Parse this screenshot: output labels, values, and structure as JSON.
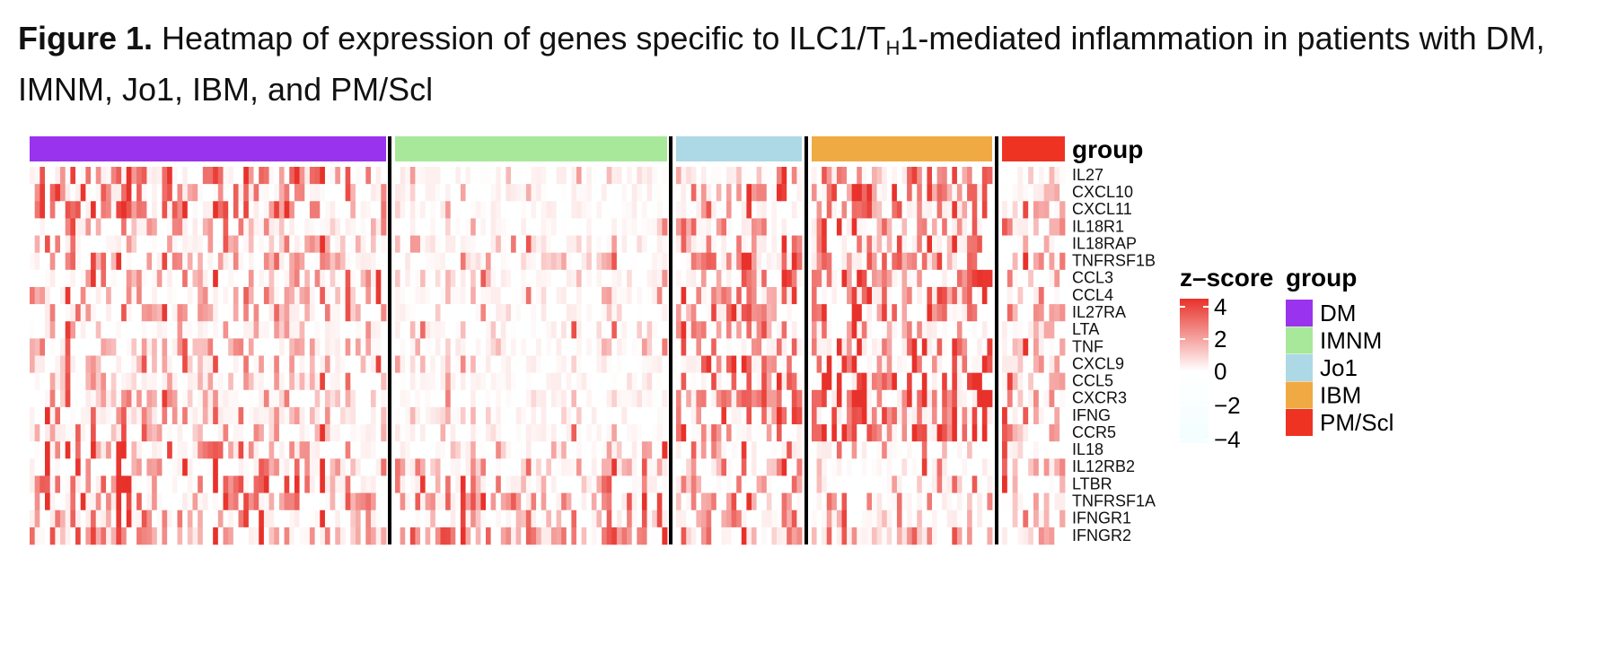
{
  "caption": {
    "bold": "Figure 1.",
    "text_a": " Heatmap of expression of genes specific to ILC1/T",
    "subscript": "H",
    "text_b": "1-mediated inflammation in patients with DM, IMNM, Jo1, IBM, and PM/Scl"
  },
  "chart_data": {
    "type": "heatmap",
    "title": "Heatmap of expression of genes specific to ILC1/TH1-mediated inflammation in patients with DM, IMNM, Jo1, IBM, and PM/Scl",
    "annotation_title": "group",
    "groups": [
      {
        "name": "DM",
        "color": "#9933EE",
        "n_samples": 70
      },
      {
        "name": "IMNM",
        "color": "#A8E89A",
        "n_samples": 54
      },
      {
        "name": "Jo1",
        "color": "#ADD8E6",
        "n_samples": 25
      },
      {
        "name": "IBM",
        "color": "#F0AA44",
        "n_samples": 36
      },
      {
        "name": "PM/Scl",
        "color": "#EE3322",
        "n_samples": 12
      }
    ],
    "genes": [
      "IL27",
      "CXCL10",
      "CXCL11",
      "IL18R1",
      "IL18RAP",
      "TNFRSF1B",
      "CCL3",
      "CCL4",
      "IL27RA",
      "LTA",
      "TNF",
      "CXCL9",
      "CCL5",
      "CXCR3",
      "IFNG",
      "CCR5",
      "IL18",
      "IL12RB2",
      "LTBR",
      "TNFRSF1A",
      "IFNGR1",
      "IFNGR2"
    ],
    "colorbar": {
      "title": "z–score",
      "range": [
        -4,
        4
      ],
      "ticks": [
        4,
        2,
        0,
        -2,
        -4
      ],
      "tick_labels": [
        "4",
        "2",
        "0",
        "−2",
        "−4"
      ],
      "low_color": "#F4FEFF",
      "mid_color": "#FFFFFF",
      "high_color": "#E8312A"
    },
    "group_mean_zscore": [
      [
        0.9,
        -0.2,
        0.3,
        0.6,
        0.4
      ],
      [
        0.8,
        -0.4,
        0.7,
        0.8,
        0.3
      ],
      [
        0.9,
        -0.4,
        0.6,
        0.6,
        0.3
      ],
      [
        0.5,
        -0.2,
        0.8,
        0.7,
        0.4
      ],
      [
        0.4,
        -0.1,
        0.6,
        0.7,
        0.3
      ],
      [
        0.6,
        0.2,
        0.8,
        0.8,
        0.6
      ],
      [
        0.5,
        -0.1,
        0.8,
        0.9,
        0.5
      ],
      [
        0.5,
        -0.1,
        0.8,
        0.9,
        0.5
      ],
      [
        0.5,
        0.0,
        0.7,
        0.9,
        0.6
      ],
      [
        0.4,
        0.0,
        0.7,
        0.8,
        0.5
      ],
      [
        0.4,
        -0.1,
        0.8,
        0.9,
        0.5
      ],
      [
        0.3,
        -0.3,
        1.0,
        1.1,
        0.5
      ],
      [
        0.3,
        -0.3,
        0.9,
        1.2,
        0.5
      ],
      [
        0.3,
        -0.3,
        0.9,
        1.2,
        0.5
      ],
      [
        0.3,
        -0.3,
        0.8,
        1.1,
        0.5
      ],
      [
        0.3,
        -0.3,
        0.9,
        1.2,
        0.5
      ],
      [
        0.7,
        0.3,
        0.5,
        0.3,
        0.4
      ],
      [
        0.7,
        0.3,
        0.4,
        0.3,
        0.4
      ],
      [
        0.8,
        0.6,
        0.5,
        0.2,
        0.5
      ],
      [
        0.8,
        0.8,
        0.4,
        0.2,
        0.4
      ],
      [
        0.6,
        0.5,
        0.4,
        0.2,
        0.3
      ],
      [
        0.5,
        0.7,
        0.4,
        0.3,
        0.3
      ]
    ]
  }
}
